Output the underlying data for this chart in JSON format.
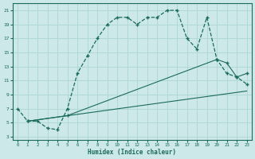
{
  "xlabel": "Humidex (Indice chaleur)",
  "bg_color": "#cce8e8",
  "grid_color": "#b0d8d8",
  "line_color": "#1a6b5a",
  "xlim": [
    -0.5,
    23.5
  ],
  "ylim": [
    2.5,
    22
  ],
  "xticks": [
    0,
    1,
    2,
    3,
    4,
    5,
    6,
    7,
    8,
    9,
    10,
    11,
    12,
    13,
    14,
    15,
    16,
    17,
    18,
    19,
    20,
    21,
    22,
    23
  ],
  "yticks": [
    3,
    5,
    7,
    9,
    11,
    13,
    15,
    17,
    19,
    21
  ],
  "line1_x": [
    0,
    1,
    2,
    3,
    4,
    5,
    6,
    7,
    8,
    9,
    10,
    11,
    12,
    13,
    14,
    15,
    16,
    17,
    18,
    19,
    20,
    21,
    22,
    23
  ],
  "line1_y": [
    7,
    5.2,
    5.2,
    4.2,
    4.0,
    7.0,
    12.0,
    14.5,
    17.0,
    19.0,
    20.0,
    20.0,
    19.0,
    20.0,
    20.0,
    21.0,
    21.0,
    17.0,
    15.5,
    20.0,
    14.0,
    12.0,
    11.5,
    10.5
  ],
  "line2_x": [
    1,
    5,
    20,
    21,
    22,
    23
  ],
  "line2_y": [
    5.2,
    6.0,
    14.0,
    13.5,
    11.5,
    12.0
  ],
  "line3_x": [
    1,
    23
  ],
  "line3_y": [
    5.2,
    9.5
  ]
}
